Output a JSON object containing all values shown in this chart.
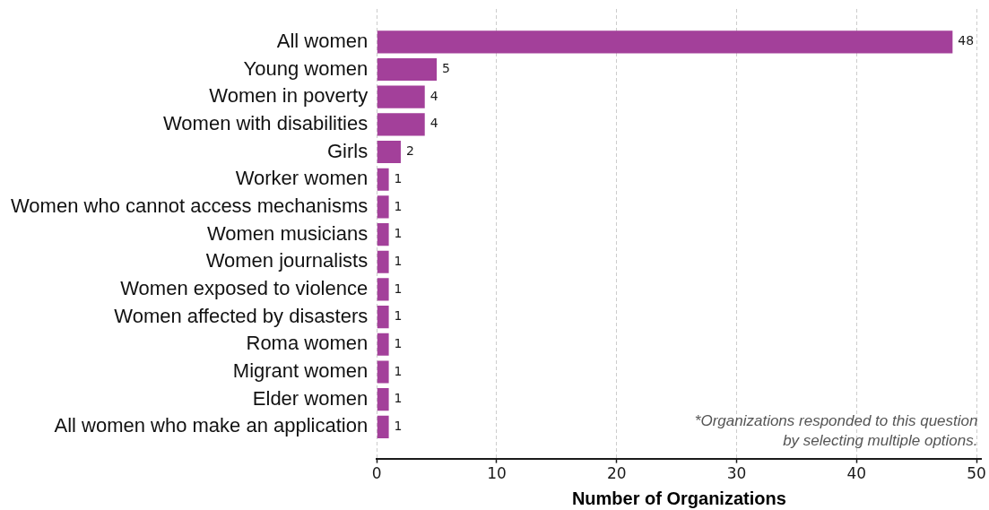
{
  "chart_data": {
    "type": "bar",
    "orientation": "horizontal",
    "categories": [
      "All women",
      "Young women",
      "Women in poverty",
      "Women with disabilities",
      "Girls",
      "Worker women",
      "Women who cannot access mechanisms",
      "Women musicians",
      "Women journalists",
      "Women exposed to violence",
      "Women affected by disasters",
      "Roma women",
      "Migrant women",
      "Elder women",
      "All women who make an application"
    ],
    "values": [
      48,
      5,
      4,
      4,
      2,
      1,
      1,
      1,
      1,
      1,
      1,
      1,
      1,
      1,
      1
    ],
    "color": "#a3409a",
    "xlabel": "Number of Organizations",
    "xlim": [
      0,
      50.4
    ],
    "xticks": [
      0,
      10,
      20,
      30,
      40,
      50
    ],
    "grid": "x",
    "data_labels": true,
    "annotations": [
      "*Organizations responded to this question by selecting multiple options."
    ]
  }
}
